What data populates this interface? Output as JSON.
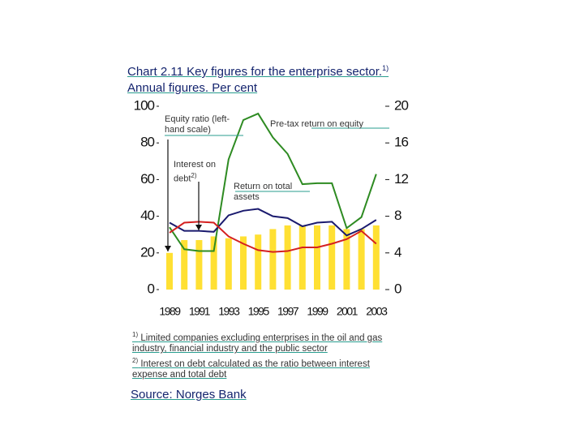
{
  "chart_data": {
    "type": "bar-line",
    "title": "Chart 2.11 Key figures for the enterprise sector.",
    "title_note": "1)",
    "subtitle": "Annual figures. Per cent",
    "categories": [
      "1989",
      null,
      "1991",
      null,
      "1993",
      null,
      "1995",
      null,
      "1997",
      null,
      "1999",
      null,
      "2001",
      null,
      "2003"
    ],
    "ylim": [
      0,
      100
    ],
    "yticks": [
      0,
      20,
      40,
      60,
      80,
      100
    ],
    "y2lim": [
      0,
      20
    ],
    "y2ticks": [
      0,
      4,
      8,
      12,
      16,
      20
    ],
    "series": [
      {
        "name": "Equity ratio (left-hand scale)",
        "kind": "bar",
        "color": "#ffe033",
        "values": [
          20,
          27,
          27,
          29,
          28,
          29,
          30,
          33,
          35,
          35,
          35,
          35,
          33,
          33,
          35
        ]
      },
      {
        "name": "Pre-tax return on equity",
        "kind": "line",
        "axis": "y2",
        "color": "#2e8b22",
        "values": [
          6.8,
          4.4,
          4.2,
          4.2,
          14.2,
          18.5,
          19.2,
          16.6,
          14.8,
          11.5,
          11.6,
          11.6,
          6.7,
          7.9,
          12.6
        ]
      },
      {
        "name": "Return on total assets",
        "kind": "line",
        "axis": "y2",
        "color": "#1a1a6e",
        "values": [
          7.3,
          6.4,
          6.4,
          6.3,
          8.1,
          8.6,
          8.8,
          8.0,
          7.8,
          6.9,
          7.3,
          7.4,
          5.9,
          6.6,
          7.6
        ]
      },
      {
        "name": "Interest on debt",
        "note_marker": "2)",
        "kind": "line",
        "axis": "y2",
        "color": "#d42020",
        "values": [
          6.2,
          7.3,
          7.4,
          7.3,
          5.8,
          5.0,
          4.3,
          4.1,
          4.2,
          4.6,
          4.6,
          5.0,
          5.5,
          6.4,
          5.0
        ]
      }
    ],
    "footnotes": [
      {
        "marker": "1)",
        "text": "Limited companies excluding enterprises in the oil and gas industry, financial industry and the public sector"
      },
      {
        "marker": "2)",
        "text": "Interest on debt calculated as the ratio between interest expense and total debt"
      }
    ],
    "source": "Source: Norges Bank"
  }
}
